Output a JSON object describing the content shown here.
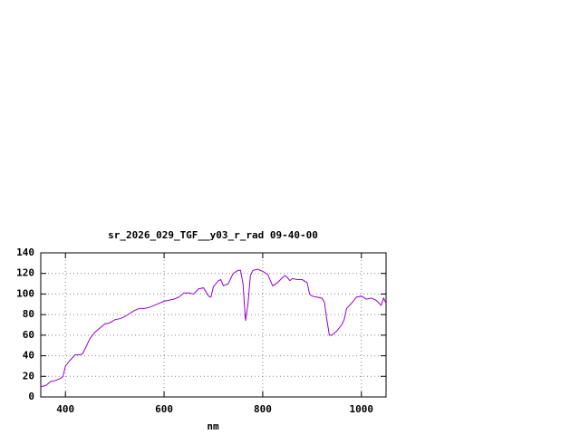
{
  "chart_data": {
    "type": "line",
    "title": "sr_2026_029_TGF__y03_r_rad 09-40-00",
    "x_label": "nm",
    "x": [
      350,
      360,
      370,
      380,
      390,
      395,
      400,
      410,
      420,
      430,
      435,
      440,
      450,
      460,
      470,
      480,
      490,
      500,
      510,
      520,
      530,
      540,
      550,
      560,
      570,
      580,
      590,
      600,
      610,
      620,
      630,
      640,
      650,
      660,
      670,
      680,
      690,
      695,
      700,
      710,
      715,
      720,
      730,
      740,
      750,
      755,
      760,
      765,
      770,
      775,
      780,
      790,
      800,
      810,
      820,
      830,
      840,
      845,
      850,
      855,
      860,
      870,
      880,
      890,
      895,
      900,
      910,
      920,
      925,
      930,
      935,
      940,
      950,
      960,
      965,
      970,
      980,
      990,
      1000,
      1010,
      1020,
      1030,
      1040,
      1045,
      1050
    ],
    "series": [
      {
        "color": "#9400d3",
        "values": [
          10,
          11,
          15,
          16,
          18,
          20,
          30,
          36,
          41,
          41,
          42,
          47,
          57,
          63,
          67,
          71,
          72,
          75,
          76,
          78,
          81,
          84,
          86,
          86,
          87,
          89,
          91,
          93,
          94,
          95,
          97,
          101,
          101,
          100,
          105,
          106,
          98,
          97,
          107,
          113,
          114,
          108,
          110,
          120,
          123,
          123,
          110,
          74,
          90,
          118,
          123,
          124,
          122,
          119,
          108,
          111,
          116,
          118,
          116,
          113,
          115,
          114,
          114,
          111,
          100,
          98,
          97,
          96,
          92,
          75,
          60,
          60,
          64,
          70,
          75,
          86,
          91,
          97,
          98,
          95,
          96,
          94,
          89,
          96,
          91
        ]
      }
    ],
    "xlim": [
      350,
      1050
    ],
    "ylim": [
      0,
      140
    ],
    "xticks": [
      400,
      600,
      800,
      1000
    ],
    "yticks": [
      0,
      20,
      40,
      60,
      80,
      100,
      120,
      140
    ],
    "grid": true
  }
}
